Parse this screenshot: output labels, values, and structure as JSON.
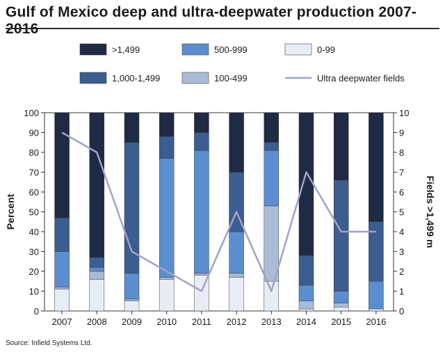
{
  "header": {
    "title": "Gulf of Mexico deep and ultra-deepwater production 2007-2016"
  },
  "footer": {
    "source": "Source: Infield Systems Ltd."
  },
  "chart_data": {
    "type": "bar",
    "stacked": true,
    "categories": [
      "2007",
      "2008",
      "2009",
      "2010",
      "2011",
      "2012",
      "2013",
      "2014",
      "2015",
      "2016"
    ],
    "series": [
      {
        "name": "0-99",
        "color": "#e8edf5",
        "values": [
          11,
          16,
          5,
          16,
          18,
          17,
          15,
          1,
          2,
          1
        ]
      },
      {
        "name": "100-499",
        "color": "#a9bcd6",
        "values": [
          1,
          4,
          1,
          1,
          1,
          2,
          38,
          4,
          2,
          0
        ]
      },
      {
        "name": "500-999",
        "color": "#5b8ed0",
        "values": [
          18,
          2,
          13,
          60,
          62,
          21,
          28,
          8,
          6,
          14
        ]
      },
      {
        "name": "1,000-1,499",
        "color": "#3b5d8f",
        "values": [
          17,
          5,
          66,
          11,
          9,
          30,
          4,
          15,
          56,
          30
        ]
      },
      {
        "name": ">1,499",
        "color": "#1f2a44",
        "values": [
          53,
          73,
          15,
          12,
          10,
          30,
          15,
          72,
          34,
          55
        ]
      }
    ],
    "line_series": {
      "name": "Ultra deepwater fields",
      "color": "#a0a3c8",
      "values": [
        9,
        8,
        3,
        2,
        1,
        5,
        1,
        7,
        4,
        4
      ]
    },
    "ylabel": "Percent",
    "ylim": [
      0,
      100
    ],
    "yticks": [
      "0",
      "10",
      "20",
      "30",
      "40",
      "50",
      "60",
      "70",
      "80",
      "90",
      "100"
    ],
    "y2label": "Fields >1,499 m",
    "y2lim": [
      0,
      10
    ],
    "y2ticks": [
      "0",
      "1",
      "2",
      "3",
      "4",
      "5",
      "6",
      "7",
      "8",
      "9",
      "10"
    ],
    "legend": {
      "placement": "top",
      "items": [
        {
          "label": ">1,499",
          "kind": "box",
          "color": "#1f2a44"
        },
        {
          "label": "500-999",
          "kind": "box",
          "color": "#5b8ed0"
        },
        {
          "label": "0-99",
          "kind": "box",
          "color": "#e8edf5"
        },
        {
          "label": "1,000-1,499",
          "kind": "box",
          "color": "#3b5d8f"
        },
        {
          "label": "100-499",
          "kind": "box",
          "color": "#a9bcd6"
        },
        {
          "label": "Ultra deepwater fields",
          "kind": "line",
          "color": "#a0a3c8"
        }
      ]
    }
  }
}
